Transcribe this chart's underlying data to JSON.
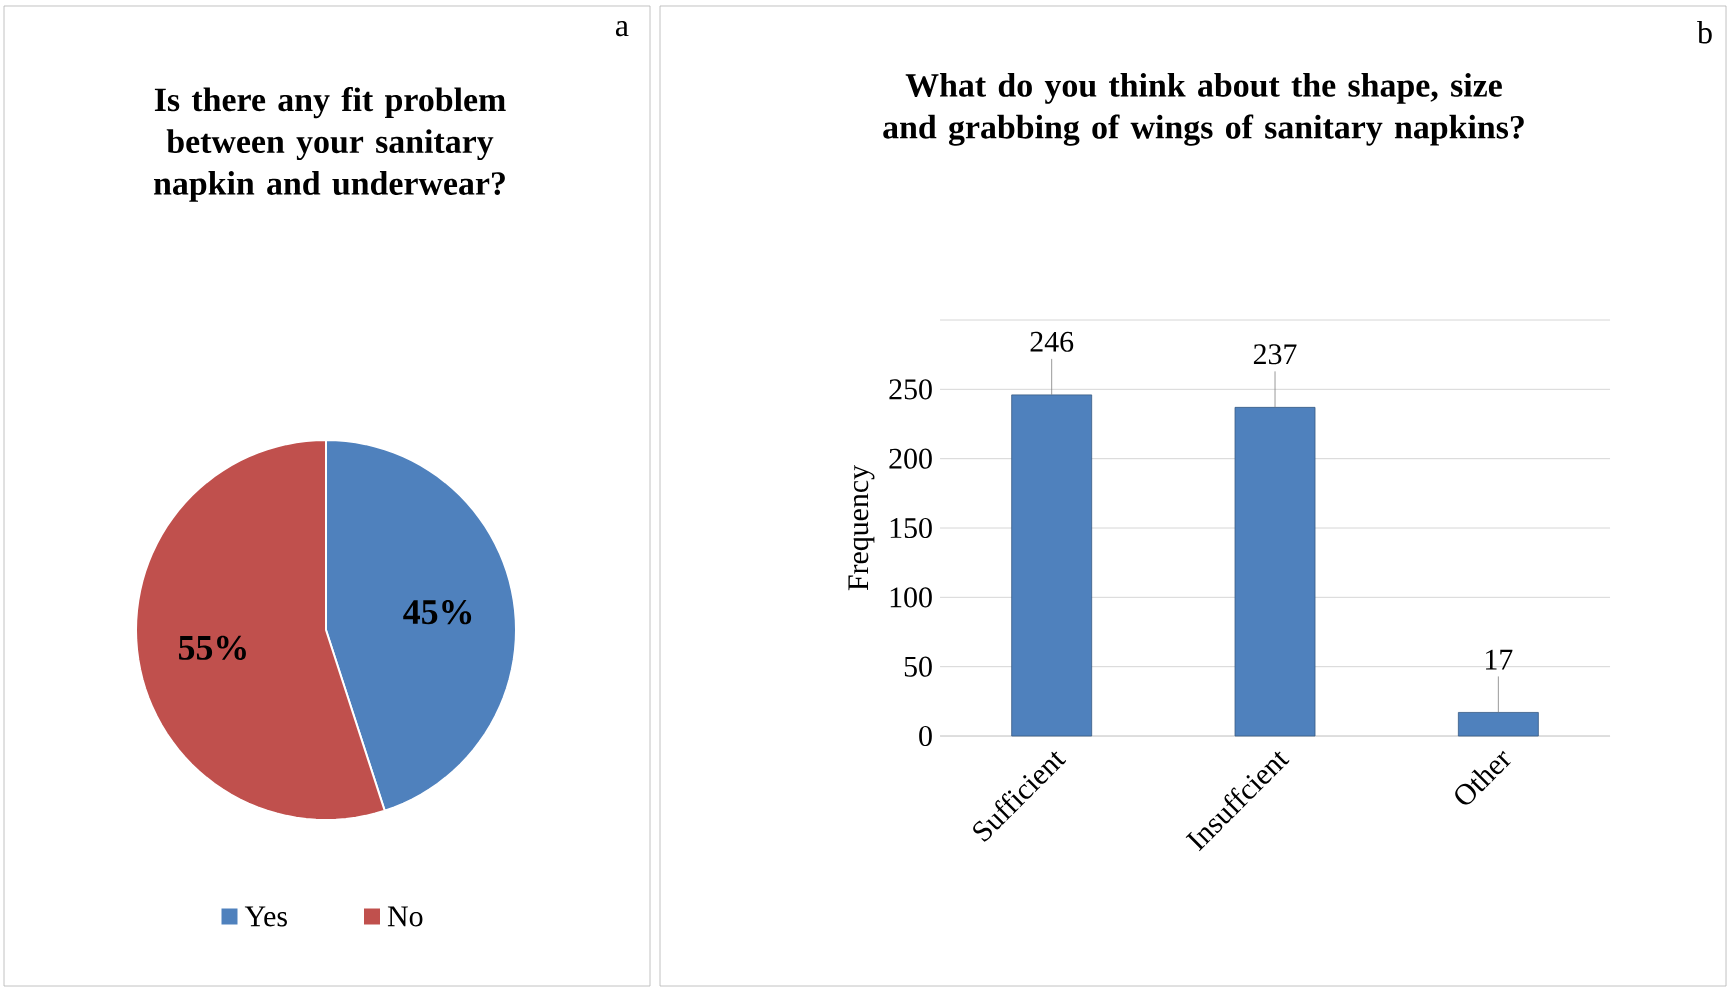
{
  "chart_data": [
    {
      "type": "pie",
      "title": "Is there any fit problem between your sanitary napkin and underwear?",
      "categories": [
        "Yes",
        "No"
      ],
      "values": [
        45,
        55
      ],
      "colors": [
        "#4f81bd",
        "#c0504d"
      ],
      "value_labels": [
        "45%",
        "55%"
      ],
      "legend": "bottom",
      "annotations": [
        "a"
      ]
    },
    {
      "type": "bar",
      "title": "What do you think about the shape, size and grabbing of wings of sanitary napkins?",
      "categories": [
        "Sufficient",
        "Insuffcient",
        "Other"
      ],
      "values": [
        246,
        237,
        17
      ],
      "color": "#4f81bd",
      "ylabel": "Frequency",
      "ylim": [
        0,
        300
      ],
      "yticks": [
        0,
        50,
        100,
        150,
        200,
        250,
        {
          "value": 300,
          "label": null
        }
      ],
      "grid": "y",
      "data_labels": true,
      "legend": false,
      "annotations": [
        "b"
      ]
    }
  ]
}
